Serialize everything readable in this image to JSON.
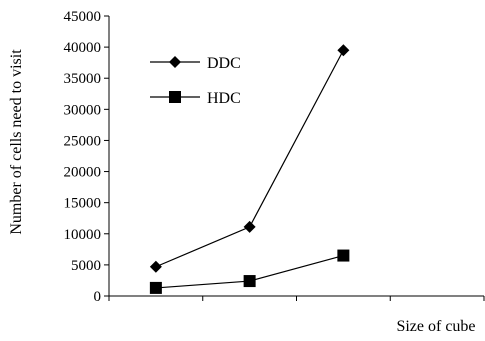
{
  "chart_data": {
    "type": "line",
    "categories": [
      "",
      "",
      "",
      ""
    ],
    "series": [
      {
        "name": "DDC",
        "values": [
          4700,
          11100,
          39500,
          null
        ],
        "marker": "diamond"
      },
      {
        "name": "HDC",
        "values": [
          1300,
          2400,
          6500,
          null
        ],
        "marker": "square"
      }
    ],
    "xlabel": "Size of cube",
    "ylabel": "Number of cells need to visit",
    "ylim": [
      0,
      45000
    ],
    "yticks": [
      "0",
      "5000",
      "10000",
      "15000",
      "20000",
      "25000",
      "30000",
      "35000",
      "40000",
      "45000"
    ],
    "grid": false,
    "legend": "top-left"
  },
  "colors": {
    "line": "#000000",
    "background": "#ffffff"
  }
}
